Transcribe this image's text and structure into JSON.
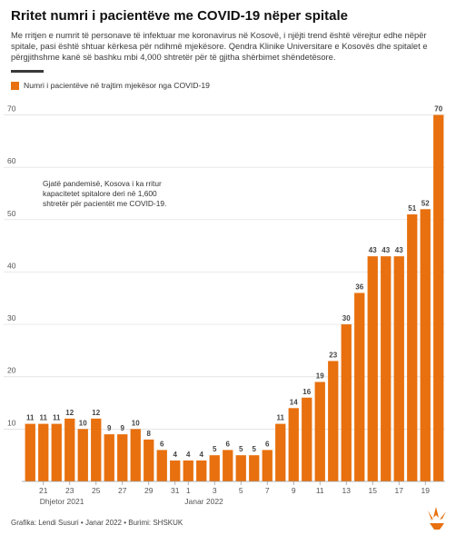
{
  "header": {
    "title": "Rritet numri i pacientëve me COVID-19 nëper spitale",
    "subtitle": "Me rritjen e numrit të personave të infektuar me koronavirus në Kosovë, i njëjti trend është vërejtur edhe nëpër spitale, pasi është shtuar kërkesa për ndihmë mjekësore. Qendra Klinike Universitare e Kosovës dhe spitalet e përgjithshme kanë së bashku mbi 4,000 shtretër për të gjitha shërbimet shëndetësore."
  },
  "legend": {
    "label": "Numri i pacientëve në trajtim mjekësor nga COVID-19"
  },
  "footer": {
    "credit": "Grafika: Lendi Susuri • Janar 2022 • Burimi: SHSKUK"
  },
  "colors": {
    "bar": "#e8700e",
    "grid": "#dcdcdc",
    "tick_text": "#555555",
    "label_text": "#444444"
  },
  "logo": {
    "icon": "rfe-rl-torch-logo"
  },
  "chart_data": {
    "type": "bar",
    "x": [
      "2021-12-20",
      "2021-12-21",
      "2021-12-22",
      "2021-12-23",
      "2021-12-24",
      "2021-12-25",
      "2021-12-26",
      "2021-12-27",
      "2021-12-28",
      "2021-12-29",
      "2021-12-30",
      "2021-12-31",
      "2022-01-01",
      "2022-01-02",
      "2022-01-03",
      "2022-01-04",
      "2022-01-05",
      "2022-01-06",
      "2022-01-07",
      "2022-01-08",
      "2022-01-09",
      "2022-01-10",
      "2022-01-11",
      "2022-01-12",
      "2022-01-13",
      "2022-01-14",
      "2022-01-15",
      "2022-01-16",
      "2022-01-17",
      "2022-01-18",
      "2022-01-19",
      "2022-01-20"
    ],
    "series": [
      {
        "values": [
          11,
          11,
          11,
          12,
          10,
          12,
          9,
          9,
          10,
          8,
          6,
          4,
          4,
          4,
          5,
          6,
          5,
          5,
          6,
          11,
          14,
          16,
          19,
          23,
          30,
          36,
          43,
          43,
          43,
          51,
          52,
          70
        ]
      }
    ],
    "ylim": [
      0,
      72
    ],
    "yticks": [
      10,
      20,
      30,
      40,
      50,
      60,
      70
    ],
    "xtick_labels": [
      {
        "text": "21",
        "x": "2021-12-21"
      },
      {
        "text": "23",
        "x": "2021-12-23"
      },
      {
        "text": "25",
        "x": "2021-12-25"
      },
      {
        "text": "27",
        "x": "2021-12-27"
      },
      {
        "text": "29",
        "x": "2021-12-29"
      },
      {
        "text": "31",
        "x": "2021-12-31"
      },
      {
        "text": "1",
        "x": "2022-01-01"
      },
      {
        "text": "3",
        "x": "2022-01-03"
      },
      {
        "text": "5",
        "x": "2022-01-05"
      },
      {
        "text": "7",
        "x": "2022-01-07"
      },
      {
        "text": "9",
        "x": "2022-01-09"
      },
      {
        "text": "11",
        "x": "2022-01-11"
      },
      {
        "text": "13",
        "x": "2022-01-13"
      },
      {
        "text": "15",
        "x": "2022-01-15"
      },
      {
        "text": "17",
        "x": "2022-01-17"
      },
      {
        "text": "19",
        "x": "2022-01-19"
      }
    ],
    "month_labels": [
      {
        "text": "Dhjetor 2021",
        "x": "2021-12-21"
      },
      {
        "text": "Janar 2022",
        "x": "2022-01-01"
      }
    ],
    "annotation": {
      "lines": [
        "Gjatë pandemisë, Kosova i ka rritur",
        "kapacitetet spitalore deri në 1,600",
        "shtretër për pacientët me COVID-19."
      ]
    },
    "grid": true,
    "data_labels": true,
    "legend_position": "top-left"
  }
}
